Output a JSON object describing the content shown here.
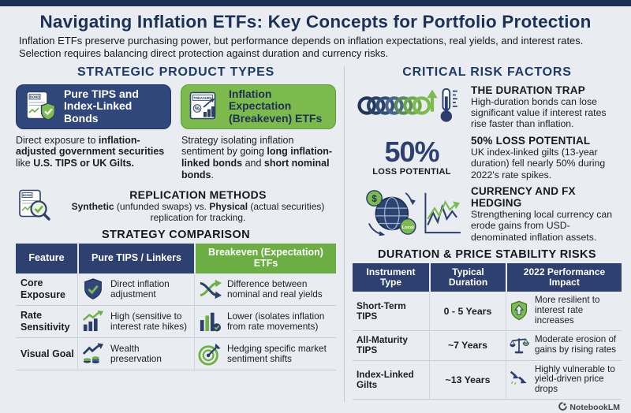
{
  "page": {
    "title": "Navigating Inflation ETFs: Key Concepts for Portfolio Protection",
    "subtitle": "Inflation ETFs preserve purchasing power, but performance depends on inflation expectations, real yields, and interest rates. Selection requires balancing direct protection against duration and currency risks.",
    "watermark": "NotebookLM"
  },
  "colors": {
    "navy": "#2d4070",
    "navy_dark": "#1e2f54",
    "green": "#7cba4e",
    "green_header": "#6cae43",
    "background": "#e9edf2"
  },
  "left": {
    "heading": "STRATEGIC PRODUCT TYPES",
    "cards": [
      {
        "icon": "bond-shield-icon",
        "label": "Pure TIPS and Index-Linked Bonds",
        "desc": [
          {
            "t": "Direct exposure to ",
            "b": false
          },
          {
            "t": "inflation-adjusted government securities",
            "b": true
          },
          {
            "t": " like ",
            "b": false
          },
          {
            "t": "U.S. TIPS or UK Gilts.",
            "b": true
          }
        ]
      },
      {
        "icon": "treasury-chart-icon",
        "label": "Inflation Expectation (Breakeven) ETFs",
        "desc": [
          {
            "t": "Strategy isolating inflation sentiment by going ",
            "b": false
          },
          {
            "t": "long inflation-linked bonds",
            "b": true
          },
          {
            "t": " and ",
            "b": false
          },
          {
            "t": "short nominal bonds",
            "b": true
          },
          {
            "t": ".",
            "b": false
          }
        ]
      }
    ],
    "replication": {
      "icon": "bond-magnifier-icon",
      "heading": "REPLICATION METHODS",
      "text": [
        {
          "t": "Synthetic",
          "b": true
        },
        {
          "t": " (unfunded swaps) vs. ",
          "b": false
        },
        {
          "t": "Physical",
          "b": true
        },
        {
          "t": " (actual securities) replication for tracking.",
          "b": false
        }
      ]
    },
    "comparison": {
      "heading": "STRATEGY COMPARISON",
      "columns": [
        "Feature",
        "Pure TIPS / Linkers",
        "Breakeven (Expectation) ETFs"
      ],
      "rows": [
        {
          "feature": "Core Exposure",
          "tips_icon": "shield-check-icon",
          "tips_text": "Direct inflation adjustment",
          "breakeven_icon": "crossing-arrows-icon",
          "breakeven_text": "Difference between nominal and real yields"
        },
        {
          "feature": "Rate Sensitivity",
          "tips_icon": "rising-chart-icon",
          "tips_text": "High (sensitive to interest rate hikes)",
          "breakeven_icon": "bar-chart-check-icon",
          "breakeven_text": "Lower (isolates inflation from rate movements)"
        },
        {
          "feature": "Visual Goal",
          "tips_icon": "growth-coins-icon",
          "tips_text": "Wealth preservation",
          "breakeven_icon": "target-dart-icon",
          "breakeven_text": "Hedging specific market sentiment shifts"
        }
      ]
    }
  },
  "right": {
    "heading": "CRITICAL RISK FACTORS",
    "risks": [
      {
        "icon": "duration-coil-thermometer-icon",
        "title": "THE DURATION TRAP",
        "text": "High-duration bonds can lose significant value if interest rates rise faster than inflation."
      },
      {
        "icon": "loss-stat",
        "stat": "50%",
        "stat_label": "LOSS POTENTIAL",
        "title": "50% LOSS POTENTIAL",
        "text": "UK index-linked gilts (13-year duration) fell nearly 50% during 2022's rate spikes."
      },
      {
        "icon": "globe-fx-chart-icon",
        "title": "CURRENCY AND FX HEDGING",
        "text": "Strengthening local currency can erode gains from USD-denominated inflation assets."
      }
    ],
    "table": {
      "heading": "DURATION & PRICE STABILITY RISKS",
      "columns": [
        "Instrument Type",
        "Typical Duration",
        "2022 Performance Impact"
      ],
      "rows": [
        {
          "instrument": "Short-Term TIPS",
          "duration": "0 - 5 Years",
          "impact_icon": "shield-up-icon",
          "impact_text": "More resilient to interest rate increases"
        },
        {
          "instrument": "All-Maturity TIPS",
          "duration": "~7 Years",
          "impact_icon": "balance-scale-icon",
          "impact_text": "Moderate erosion of gains by rising rates"
        },
        {
          "instrument": "Index-Linked Gilts",
          "duration": "~13 Years",
          "impact_icon": "down-arrows-icon",
          "impact_text": "Highly vulnerable to yield-driven price drops"
        }
      ]
    }
  }
}
